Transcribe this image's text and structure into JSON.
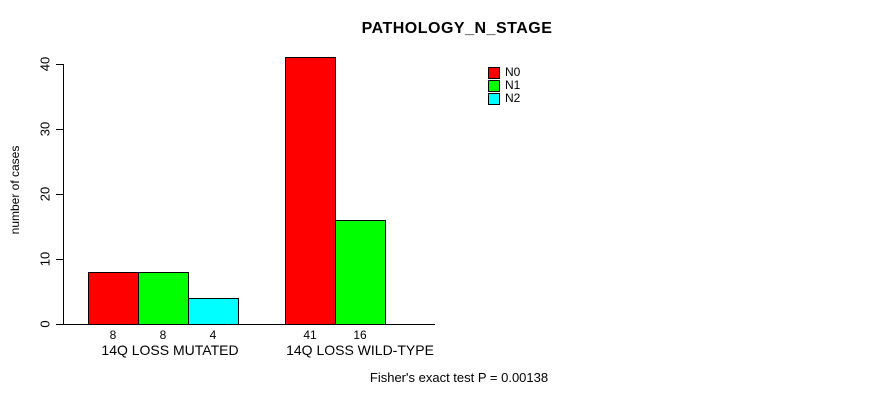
{
  "chart_data": {
    "type": "bar",
    "title": "PATHOLOGY_N_STAGE",
    "ylabel": "number of cases",
    "xlabel": "",
    "categories": [
      "14Q LOSS MUTATED",
      "14Q LOSS WILD-TYPE"
    ],
    "series": [
      {
        "name": "N0",
        "color": "#ff0000",
        "values": [
          8,
          41
        ]
      },
      {
        "name": "N1",
        "color": "#00ff00",
        "values": [
          8,
          16
        ]
      },
      {
        "name": "N2",
        "color": "#00ffff",
        "values": [
          4,
          0
        ]
      }
    ],
    "bar_value_labels": [
      [
        "8",
        "8",
        "4"
      ],
      [
        "41",
        "16",
        ""
      ]
    ],
    "ylim": [
      0,
      40
    ],
    "yticks": [
      0,
      10,
      20,
      30,
      40
    ],
    "grid": false,
    "legend": {
      "position": "top-right",
      "entries": [
        "N0",
        "N1",
        "N2"
      ]
    },
    "annotation": "Fisher's exact test P = 0.00138",
    "axis_color": "#000000",
    "background": "#ffffff"
  }
}
